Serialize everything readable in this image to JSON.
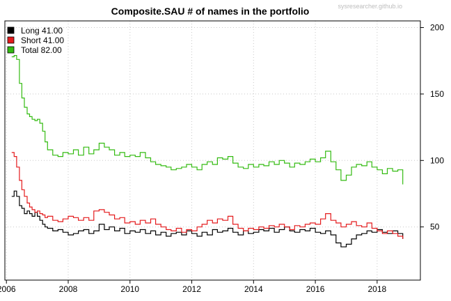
{
  "chart_data": {
    "type": "line",
    "title": "Composite.SAU # of names in the portfolio",
    "watermark": "sysresearcher.github.io",
    "x_range": [
      2005.95,
      2019.4
    ],
    "y_range": [
      10,
      205
    ],
    "x_ticks": [
      2006,
      2008,
      2010,
      2012,
      2014,
      2016,
      2018
    ],
    "x_tick_labels": [
      "2006",
      "2008",
      "2010",
      "2012",
      "2014",
      "2016",
      "2018"
    ],
    "y_ticks": [
      50,
      100,
      150,
      200
    ],
    "y_tick_labels": [
      "50",
      "100",
      "150",
      "200"
    ],
    "y_axis_side": "right",
    "grid": "dotted",
    "legend_position": "top-left",
    "series": [
      {
        "name": "Long 41.00",
        "color": "#000000",
        "points": [
          [
            2006.17,
            73
          ],
          [
            2006.25,
            77
          ],
          [
            2006.33,
            73
          ],
          [
            2006.42,
            66
          ],
          [
            2006.5,
            64
          ],
          [
            2006.58,
            60
          ],
          [
            2006.67,
            62
          ],
          [
            2006.75,
            60
          ],
          [
            2006.83,
            58
          ],
          [
            2006.92,
            61
          ],
          [
            2007.0,
            58
          ],
          [
            2007.08,
            55
          ],
          [
            2007.17,
            52
          ],
          [
            2007.25,
            50
          ],
          [
            2007.33,
            49
          ],
          [
            2007.5,
            47
          ],
          [
            2007.67,
            48
          ],
          [
            2007.83,
            46
          ],
          [
            2008.0,
            44
          ],
          [
            2008.17,
            45
          ],
          [
            2008.33,
            47
          ],
          [
            2008.5,
            48
          ],
          [
            2008.67,
            45
          ],
          [
            2008.83,
            47
          ],
          [
            2009.0,
            52
          ],
          [
            2009.17,
            48
          ],
          [
            2009.33,
            50
          ],
          [
            2009.5,
            47
          ],
          [
            2009.67,
            49
          ],
          [
            2009.83,
            45
          ],
          [
            2010.0,
            47
          ],
          [
            2010.17,
            46
          ],
          [
            2010.33,
            48
          ],
          [
            2010.5,
            45
          ],
          [
            2010.67,
            47
          ],
          [
            2010.83,
            44
          ],
          [
            2011.0,
            46
          ],
          [
            2011.17,
            43
          ],
          [
            2011.33,
            45
          ],
          [
            2011.5,
            46
          ],
          [
            2011.67,
            44
          ],
          [
            2011.83,
            47
          ],
          [
            2012.0,
            45
          ],
          [
            2012.17,
            43
          ],
          [
            2012.33,
            46
          ],
          [
            2012.5,
            44
          ],
          [
            2012.67,
            48
          ],
          [
            2012.83,
            46
          ],
          [
            2013.0,
            47
          ],
          [
            2013.17,
            49
          ],
          [
            2013.33,
            46
          ],
          [
            2013.5,
            44
          ],
          [
            2013.67,
            47
          ],
          [
            2013.83,
            45
          ],
          [
            2014.0,
            46
          ],
          [
            2014.17,
            48
          ],
          [
            2014.33,
            47
          ],
          [
            2014.5,
            49
          ],
          [
            2014.67,
            46
          ],
          [
            2014.83,
            48
          ],
          [
            2015.0,
            50
          ],
          [
            2015.17,
            47
          ],
          [
            2015.33,
            46
          ],
          [
            2015.5,
            48
          ],
          [
            2015.67,
            47
          ],
          [
            2015.83,
            49
          ],
          [
            2016.0,
            46
          ],
          [
            2016.17,
            45
          ],
          [
            2016.33,
            47
          ],
          [
            2016.5,
            44
          ],
          [
            2016.67,
            38
          ],
          [
            2016.83,
            35
          ],
          [
            2017.0,
            37
          ],
          [
            2017.17,
            41
          ],
          [
            2017.33,
            44
          ],
          [
            2017.5,
            45
          ],
          [
            2017.67,
            47
          ],
          [
            2017.83,
            46
          ],
          [
            2018.0,
            48
          ],
          [
            2018.17,
            46
          ],
          [
            2018.33,
            45
          ],
          [
            2018.5,
            47
          ],
          [
            2018.67,
            45
          ],
          [
            2018.83,
            41
          ]
        ]
      },
      {
        "name": "Short 41.00",
        "color": "#e41a1c",
        "points": [
          [
            2006.17,
            106
          ],
          [
            2006.25,
            103
          ],
          [
            2006.33,
            95
          ],
          [
            2006.42,
            85
          ],
          [
            2006.5,
            78
          ],
          [
            2006.58,
            73
          ],
          [
            2006.67,
            68
          ],
          [
            2006.75,
            65
          ],
          [
            2006.83,
            63
          ],
          [
            2006.92,
            61
          ],
          [
            2007.0,
            62
          ],
          [
            2007.08,
            60
          ],
          [
            2007.17,
            59
          ],
          [
            2007.25,
            57
          ],
          [
            2007.33,
            58
          ],
          [
            2007.5,
            55
          ],
          [
            2007.67,
            54
          ],
          [
            2007.83,
            56
          ],
          [
            2008.0,
            58
          ],
          [
            2008.17,
            57
          ],
          [
            2008.33,
            55
          ],
          [
            2008.5,
            57
          ],
          [
            2008.67,
            55
          ],
          [
            2008.83,
            62
          ],
          [
            2009.0,
            63
          ],
          [
            2009.17,
            61
          ],
          [
            2009.33,
            59
          ],
          [
            2009.5,
            56
          ],
          [
            2009.67,
            57
          ],
          [
            2009.83,
            53
          ],
          [
            2010.0,
            54
          ],
          [
            2010.17,
            52
          ],
          [
            2010.33,
            55
          ],
          [
            2010.5,
            53
          ],
          [
            2010.67,
            56
          ],
          [
            2010.83,
            52
          ],
          [
            2011.0,
            50
          ],
          [
            2011.17,
            48
          ],
          [
            2011.33,
            47
          ],
          [
            2011.5,
            49
          ],
          [
            2011.67,
            46
          ],
          [
            2011.83,
            48
          ],
          [
            2012.0,
            47
          ],
          [
            2012.17,
            50
          ],
          [
            2012.33,
            52
          ],
          [
            2012.5,
            55
          ],
          [
            2012.67,
            53
          ],
          [
            2012.83,
            56
          ],
          [
            2013.0,
            55
          ],
          [
            2013.17,
            58
          ],
          [
            2013.33,
            52
          ],
          [
            2013.5,
            49
          ],
          [
            2013.67,
            47
          ],
          [
            2013.83,
            49
          ],
          [
            2014.0,
            48
          ],
          [
            2014.17,
            50
          ],
          [
            2014.33,
            49
          ],
          [
            2014.5,
            51
          ],
          [
            2014.67,
            50
          ],
          [
            2014.83,
            52
          ],
          [
            2015.0,
            50
          ],
          [
            2015.17,
            48
          ],
          [
            2015.33,
            51
          ],
          [
            2015.5,
            50
          ],
          [
            2015.67,
            52
          ],
          [
            2015.83,
            53
          ],
          [
            2016.0,
            52
          ],
          [
            2016.17,
            56
          ],
          [
            2016.33,
            60
          ],
          [
            2016.5,
            55
          ],
          [
            2016.67,
            53
          ],
          [
            2016.83,
            50
          ],
          [
            2017.0,
            52
          ],
          [
            2017.17,
            54
          ],
          [
            2017.33,
            51
          ],
          [
            2017.5,
            50
          ],
          [
            2017.67,
            53
          ],
          [
            2017.83,
            49
          ],
          [
            2018.0,
            47
          ],
          [
            2018.17,
            45
          ],
          [
            2018.33,
            47
          ],
          [
            2018.5,
            45
          ],
          [
            2018.67,
            43
          ],
          [
            2018.83,
            41
          ]
        ]
      },
      {
        "name": "Total 82.00",
        "color": "#33bb11",
        "points": [
          [
            2006.17,
            178
          ],
          [
            2006.25,
            179
          ],
          [
            2006.33,
            176
          ],
          [
            2006.42,
            158
          ],
          [
            2006.5,
            147
          ],
          [
            2006.58,
            140
          ],
          [
            2006.67,
            135
          ],
          [
            2006.75,
            133
          ],
          [
            2006.83,
            131
          ],
          [
            2006.92,
            130
          ],
          [
            2007.0,
            131
          ],
          [
            2007.08,
            128
          ],
          [
            2007.17,
            122
          ],
          [
            2007.25,
            114
          ],
          [
            2007.33,
            108
          ],
          [
            2007.5,
            104
          ],
          [
            2007.67,
            103
          ],
          [
            2007.83,
            106
          ],
          [
            2008.0,
            105
          ],
          [
            2008.17,
            108
          ],
          [
            2008.33,
            104
          ],
          [
            2008.5,
            110
          ],
          [
            2008.67,
            105
          ],
          [
            2008.83,
            108
          ],
          [
            2009.0,
            113
          ],
          [
            2009.17,
            110
          ],
          [
            2009.33,
            108
          ],
          [
            2009.5,
            104
          ],
          [
            2009.67,
            106
          ],
          [
            2009.83,
            103
          ],
          [
            2010.0,
            104
          ],
          [
            2010.17,
            103
          ],
          [
            2010.33,
            106
          ],
          [
            2010.5,
            102
          ],
          [
            2010.67,
            99
          ],
          [
            2010.83,
            97
          ],
          [
            2011.0,
            96
          ],
          [
            2011.17,
            95
          ],
          [
            2011.33,
            93
          ],
          [
            2011.5,
            94
          ],
          [
            2011.67,
            95
          ],
          [
            2011.83,
            97
          ],
          [
            2012.0,
            95
          ],
          [
            2012.17,
            93
          ],
          [
            2012.33,
            97
          ],
          [
            2012.5,
            99
          ],
          [
            2012.67,
            97
          ],
          [
            2012.83,
            102
          ],
          [
            2013.0,
            101
          ],
          [
            2013.17,
            103
          ],
          [
            2013.33,
            98
          ],
          [
            2013.5,
            95
          ],
          [
            2013.67,
            94
          ],
          [
            2013.83,
            97
          ],
          [
            2014.0,
            95
          ],
          [
            2014.17,
            97
          ],
          [
            2014.33,
            96
          ],
          [
            2014.5,
            99
          ],
          [
            2014.67,
            97
          ],
          [
            2014.83,
            100
          ],
          [
            2015.0,
            98
          ],
          [
            2015.17,
            95
          ],
          [
            2015.33,
            98
          ],
          [
            2015.5,
            97
          ],
          [
            2015.67,
            99
          ],
          [
            2015.83,
            101
          ],
          [
            2016.0,
            99
          ],
          [
            2016.17,
            102
          ],
          [
            2016.33,
            107
          ],
          [
            2016.5,
            99
          ],
          [
            2016.67,
            93
          ],
          [
            2016.83,
            85
          ],
          [
            2017.0,
            89
          ],
          [
            2017.17,
            95
          ],
          [
            2017.33,
            97
          ],
          [
            2017.5,
            96
          ],
          [
            2017.67,
            99
          ],
          [
            2017.83,
            95
          ],
          [
            2018.0,
            93
          ],
          [
            2018.17,
            90
          ],
          [
            2018.33,
            94
          ],
          [
            2018.5,
            92
          ],
          [
            2018.67,
            93
          ],
          [
            2018.83,
            82
          ]
        ]
      }
    ]
  }
}
